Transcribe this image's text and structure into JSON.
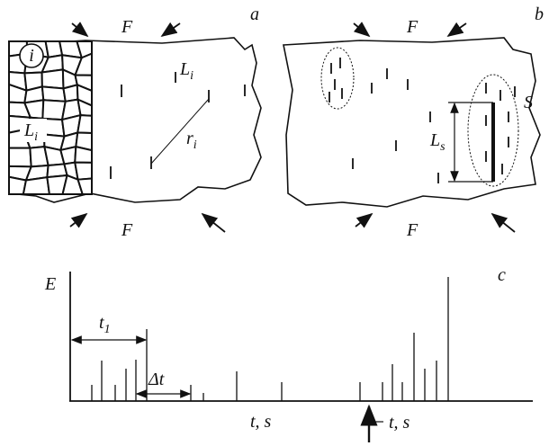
{
  "panel_a": {
    "label": "a",
    "force_top": "F",
    "force_bottom": "F",
    "grain_label": "i",
    "crack_length": {
      "symbol": "L",
      "sub": "i"
    },
    "grain_size": {
      "symbol": "L",
      "sub": "i"
    },
    "distance": {
      "symbol": "r",
      "sub": "i"
    }
  },
  "panel_b": {
    "label": "b",
    "force_top": "F",
    "force_bottom": "F",
    "cluster_length": {
      "symbol": "L",
      "sub": "s"
    },
    "cluster_label": "S"
  },
  "panel_c": {
    "label": "c",
    "y_axis": "E",
    "interval_first": {
      "symbol": "t",
      "sub": "1"
    },
    "interval": "Δt",
    "time_axis": "t, s",
    "time_axis_marker": "t, s"
  }
}
